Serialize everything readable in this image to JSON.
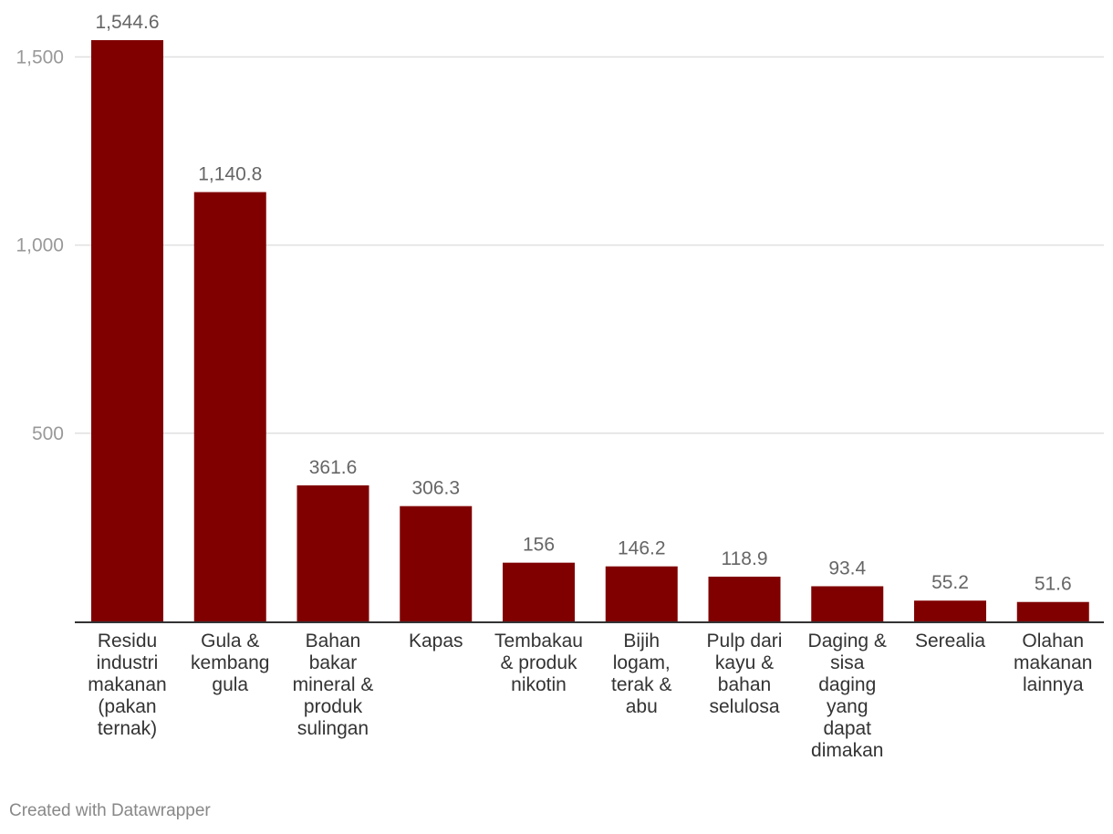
{
  "chart_data": {
    "type": "bar",
    "categories": [
      "Residu industri makanan (pakan ternak)",
      "Gula & kembang gula",
      "Bahan bakar mineral & produk sulingan",
      "Kapas",
      "Tembakau & produk nikotin",
      "Bijih logam, terak & abu",
      "Pulp dari kayu & bahan selulosa",
      "Daging & sisa daging yang dapat dimakan",
      "Serealia",
      "Olahan makanan lainnya"
    ],
    "category_lines": [
      [
        "Residu",
        "industri",
        "makanan",
        "(pakan",
        "ternak)"
      ],
      [
        "Gula &",
        "kembang",
        "gula"
      ],
      [
        "Bahan",
        "bakar",
        "mineral &",
        "produk",
        "sulingan"
      ],
      [
        "Kapas"
      ],
      [
        "Tembakau",
        "& produk",
        "nikotin"
      ],
      [
        "Bijih",
        "logam,",
        "terak &",
        "abu"
      ],
      [
        "Pulp dari",
        "kayu &",
        "bahan",
        "selulosa"
      ],
      [
        "Daging &",
        "sisa",
        "daging",
        "yang",
        "dapat",
        "dimakan"
      ],
      [
        "Serealia"
      ],
      [
        "Olahan",
        "makanan",
        "lainnya"
      ]
    ],
    "values": [
      1544.6,
      1140.8,
      361.6,
      306.3,
      156,
      146.2,
      118.9,
      93.4,
      55.2,
      51.6
    ],
    "value_labels": [
      "1,544.6",
      "1,140.8",
      "361.6",
      "306.3",
      "156",
      "146.2",
      "118.9",
      "93.4",
      "55.2",
      "51.6"
    ],
    "y_ticks": [
      500,
      1000,
      1500
    ],
    "y_tick_labels": [
      "500",
      "1,000",
      "1,500"
    ],
    "ylim": [
      0,
      1544.6
    ],
    "grid": true,
    "title": "",
    "xlabel": "",
    "ylabel": ""
  },
  "colors": {
    "bar": "#800000",
    "grid": "#e0e0e0",
    "axis": "#333333"
  },
  "footer": {
    "credit": "Created with Datawrapper"
  }
}
